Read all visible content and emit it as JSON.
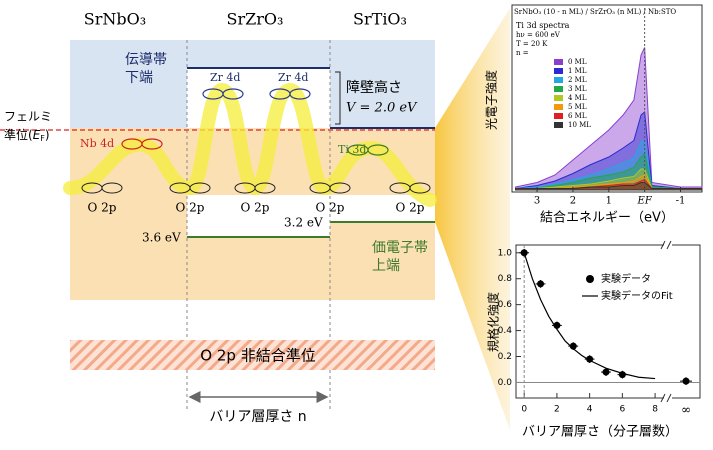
{
  "diagram": {
    "columns": [
      "SrNbO₃",
      "SrZrO₃",
      "SrTiO₃"
    ],
    "cb_label": [
      "伝導帯",
      "下端"
    ],
    "barrier_label": "障壁高さ",
    "barrier_value": "V = 2.0 eV",
    "fermi": {
      "line1": "フェルミ",
      "line2": "準位(",
      "symbol": "E",
      "subscript": "F",
      "close": ")"
    },
    "orbitals": [
      "Nb 4d",
      "Zr 4d",
      "Zr 4d",
      "Ti 3d"
    ],
    "o2p": [
      "O 2p",
      "O 2p",
      "O 2p",
      "O 2p",
      "O 2p"
    ],
    "gaps": [
      "3.6 eV",
      "3.2 eV"
    ],
    "vb_label": [
      "価電子帯",
      "上端"
    ],
    "nonbonding": "O 2p 非結合準位",
    "thickness": "バリア層厚さ n"
  },
  "chart_data": [
    {
      "type": "area",
      "title": "SrNbO₃ (10 - n ML) / SrZrO₃ (n ML) / Nb:STO",
      "annotations": [
        "Ti 3d spectra",
        "hν = 600 eV",
        "T = 20 K",
        "n ="
      ],
      "y_label": "光電子強度",
      "x_label": "結合エネルギー（eV）",
      "xlim": [
        3.7,
        -1.6
      ],
      "ylim": [
        0,
        1
      ],
      "xticks": [
        3,
        2,
        1,
        {
          "value": 0,
          "label": "EF"
        },
        -1
      ],
      "x": [
        3.6,
        3,
        2.5,
        2,
        1.5,
        1,
        0.6,
        0.3,
        0.1,
        0,
        -0.2,
        -1,
        -1.6
      ],
      "series": [
        {
          "name": "0 ML",
          "color": "#8a3fd0",
          "values": [
            0.02,
            0.05,
            0.1,
            0.2,
            0.3,
            0.4,
            0.5,
            0.6,
            0.9,
            0.95,
            0.05,
            0.02,
            0.02
          ]
        },
        {
          "name": "1 ML",
          "color": "#2a2ad0",
          "values": [
            0.01,
            0.03,
            0.06,
            0.11,
            0.17,
            0.22,
            0.28,
            0.33,
            0.5,
            0.52,
            0.03,
            0.01,
            0.01
          ]
        },
        {
          "name": "2 ML",
          "color": "#22a8e0",
          "values": [
            0.01,
            0.02,
            0.04,
            0.07,
            0.1,
            0.14,
            0.18,
            0.21,
            0.32,
            0.33,
            0.02,
            0.01,
            0.01
          ]
        },
        {
          "name": "3 ML",
          "color": "#22a844",
          "values": [
            0.01,
            0.01,
            0.03,
            0.05,
            0.08,
            0.1,
            0.12,
            0.15,
            0.22,
            0.24,
            0.02,
            0.01,
            0.01
          ]
        },
        {
          "name": "4 ML",
          "color": "#b0c820",
          "values": [
            0.01,
            0.01,
            0.02,
            0.03,
            0.04,
            0.06,
            0.08,
            0.09,
            0.14,
            0.14,
            0.01,
            0.01,
            0.01
          ]
        },
        {
          "name": "5 ML",
          "color": "#f09a10",
          "values": [
            0.01,
            0.01,
            0.01,
            0.02,
            0.03,
            0.04,
            0.05,
            0.06,
            0.09,
            0.1,
            0.01,
            0.01,
            0.01
          ]
        },
        {
          "name": "6 ML",
          "color": "#e02020",
          "values": [
            0.01,
            0.01,
            0.01,
            0.01,
            0.02,
            0.03,
            0.04,
            0.04,
            0.06,
            0.07,
            0.01,
            0.01,
            0.01
          ]
        },
        {
          "name": "10 ML",
          "color": "#333333",
          "values": [
            0.01,
            0.01,
            0.01,
            0.01,
            0.02,
            0.02,
            0.03,
            0.03,
            0.05,
            0.05,
            0.01,
            0.01,
            0.01
          ]
        }
      ]
    },
    {
      "type": "scatter",
      "y_label": "規格化強度",
      "x_label": "バリア層厚さ（分子層数）",
      "xlim": [
        -0.5,
        8.3
      ],
      "ylim": [
        -0.12,
        1.06
      ],
      "xticks": [
        0,
        2,
        4,
        6,
        8
      ],
      "yticks": [
        {
          "value": 0,
          "label": "0.0"
        },
        {
          "value": 0.2,
          "label": "0.2"
        },
        {
          "value": 0.4,
          "label": "0.4"
        },
        {
          "value": 0.6,
          "label": "0.6"
        },
        {
          "value": 0.8,
          "label": "0.8"
        },
        {
          "value": 1,
          "label": "1.0"
        }
      ],
      "x": [
        0,
        1,
        2,
        3,
        4,
        5,
        6
      ],
      "values": [
        1.0,
        0.76,
        0.44,
        0.28,
        0.18,
        0.08,
        0.06
      ],
      "errors": [
        0.03,
        0.03,
        0.03,
        0.03,
        0.03,
        0.03,
        0.03
      ],
      "x_errors": [
        0.3,
        0.3,
        0.3,
        0.3,
        0.3,
        0.3,
        0.3
      ],
      "inf_point": {
        "label": "∞",
        "value": 0.01,
        "error": 0.03
      },
      "series": [
        {
          "name": "実験データ",
          "color": "#000000"
        },
        {
          "name": "実験データのFit",
          "color": "#000000",
          "x": [
            0,
            0.5,
            1,
            1.5,
            2,
            2.5,
            3,
            3.5,
            4,
            5,
            6,
            7,
            8
          ],
          "values": [
            1.0,
            0.8,
            0.64,
            0.51,
            0.41,
            0.32,
            0.26,
            0.21,
            0.17,
            0.11,
            0.07,
            0.04,
            0.03
          ]
        }
      ]
    }
  ]
}
